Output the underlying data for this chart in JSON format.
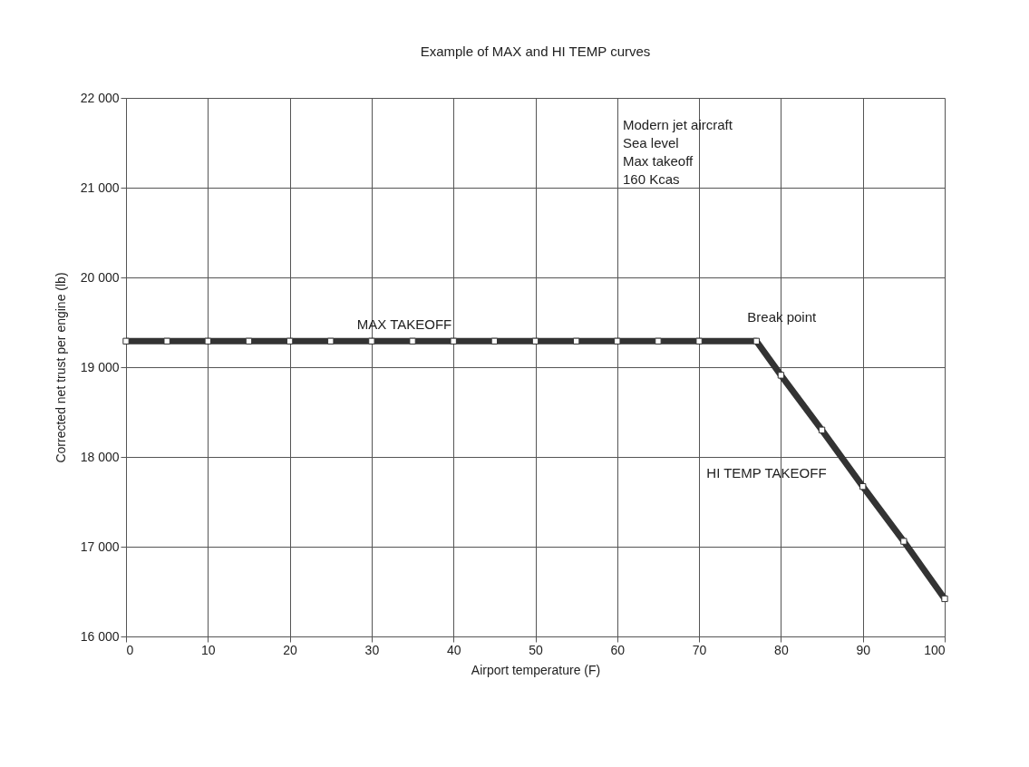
{
  "chart_data": {
    "type": "line",
    "title": "Example of MAX and HI TEMP curves",
    "xlabel": "Airport temperature (F)",
    "ylabel": "Corrected net trust per engine (lb)",
    "x": [
      0,
      5,
      10,
      15,
      20,
      25,
      30,
      35,
      40,
      45,
      50,
      55,
      60,
      65,
      70,
      77,
      80,
      85,
      90,
      95,
      100
    ],
    "series": [
      {
        "color": "#333333",
        "values": [
          19290,
          19290,
          19290,
          19290,
          19290,
          19290,
          19290,
          19290,
          19290,
          19290,
          19290,
          19290,
          19290,
          19290,
          19290,
          19290,
          18910,
          18300,
          17670,
          17060,
          16420
        ]
      }
    ],
    "xlim": [
      0,
      100
    ],
    "xticks": [
      0,
      10,
      20,
      30,
      40,
      50,
      60,
      70,
      80,
      90,
      100
    ],
    "ylim": [
      16000,
      22000
    ],
    "yticks": [
      {
        "value": 16000,
        "label": "16 000"
      },
      {
        "value": 17000,
        "label": "17 000"
      },
      {
        "value": 18000,
        "label": "18 000"
      },
      {
        "value": 19000,
        "label": "19 000"
      },
      {
        "value": 20000,
        "label": "20 000"
      },
      {
        "value": 21000,
        "label": "21 000"
      },
      {
        "value": 22000,
        "label": "22 000"
      }
    ],
    "grid": true,
    "marker": "square",
    "line_style": "solid",
    "annotations": [
      {
        "text": "MAX TAKEOFF",
        "x": 34,
        "y": 19290
      },
      {
        "text": "Break point",
        "x": 77,
        "y": 19290
      },
      {
        "text": "HI TEMP TAKEOFF",
        "x": 85,
        "y": 18300
      },
      "Modern jet aircraft",
      "Sea level",
      "Max takeoff",
      "160 Kcas"
    ]
  }
}
